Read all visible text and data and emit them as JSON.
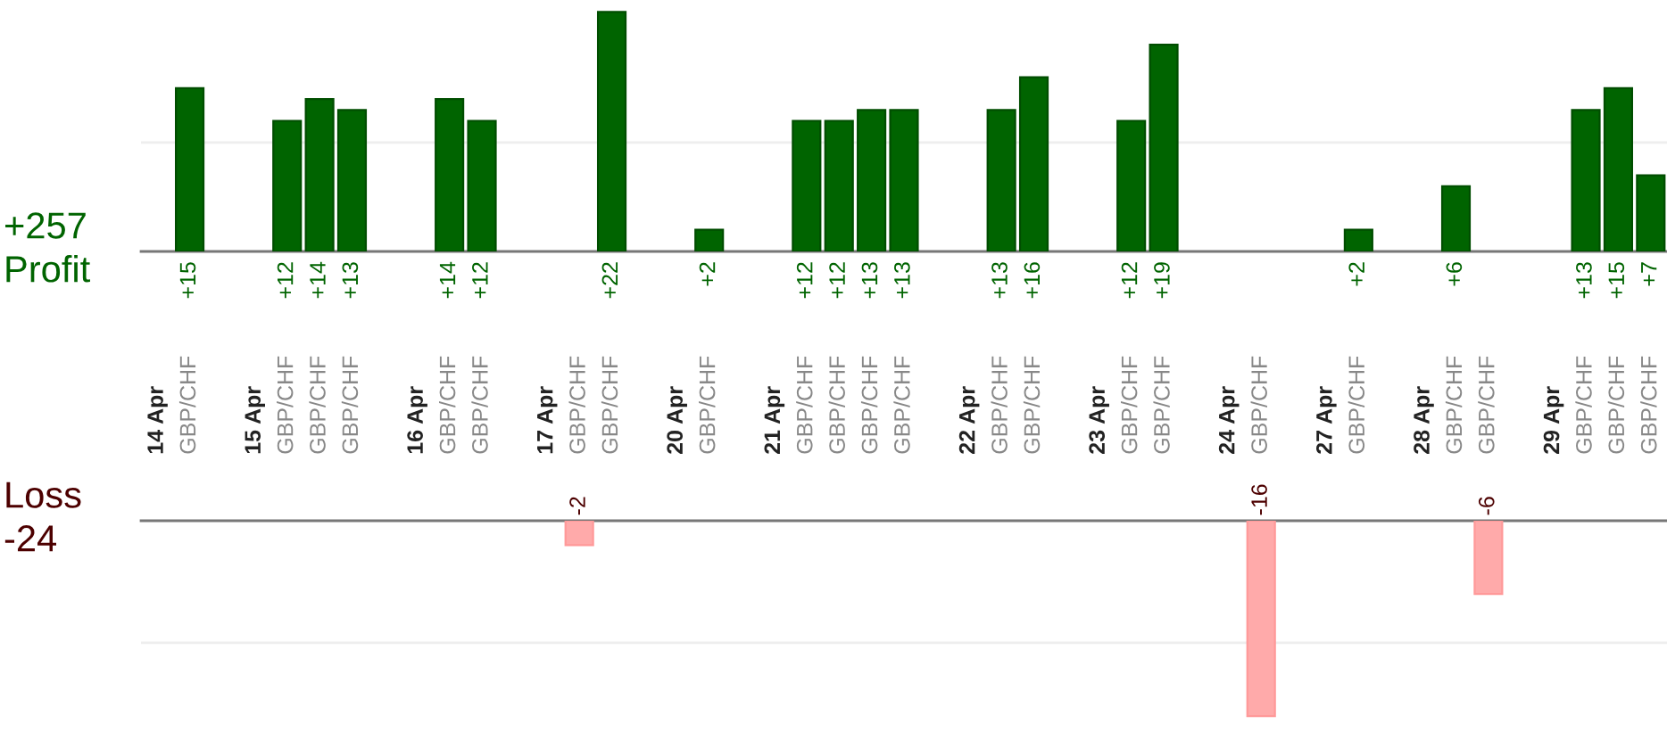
{
  "chart_data": [
    {
      "type": "bar",
      "categories": [
        "14 Apr",
        "GBP/CHF",
        null,
        "15 Apr",
        "GBP/CHF",
        "GBP/CHF",
        "GBP/CHF",
        null,
        "16 Apr",
        "GBP/CHF",
        "GBP/CHF",
        null,
        "17 Apr",
        "GBP/CHF",
        "GBP/CHF",
        null,
        "20 Apr",
        "GBP/CHF",
        null,
        "21 Apr",
        "GBP/CHF",
        "GBP/CHF",
        "GBP/CHF",
        "GBP/CHF",
        null,
        "22 Apr",
        "GBP/CHF",
        "GBP/CHF",
        null,
        "23 Apr",
        "GBP/CHF",
        "GBP/CHF",
        null,
        "24 Apr",
        "GBP/CHF",
        null,
        "27 Apr",
        "GBP/CHF",
        null,
        "28 Apr",
        "GBP/CHF",
        "GBP/CHF",
        null,
        "29 Apr",
        "GBP/CHF",
        "GBP/CHF",
        "GBP/CHF"
      ],
      "values": [
        null,
        15,
        null,
        null,
        12,
        14,
        13,
        null,
        null,
        14,
        12,
        null,
        null,
        null,
        22,
        null,
        null,
        2,
        null,
        null,
        12,
        12,
        13,
        13,
        null,
        null,
        13,
        16,
        null,
        null,
        12,
        19,
        null,
        null,
        null,
        null,
        null,
        2,
        null,
        null,
        6,
        null,
        null,
        null,
        13,
        15,
        7
      ],
      "value_labels": [
        null,
        "+15",
        null,
        null,
        "+12",
        "+14",
        "+13",
        null,
        null,
        "+14",
        "+12",
        null,
        null,
        null,
        "+22",
        null,
        null,
        "+2",
        null,
        null,
        "+12",
        "+12",
        "+13",
        "+13",
        null,
        null,
        "+13",
        "+16",
        null,
        null,
        "+12",
        "+19",
        null,
        null,
        null,
        null,
        null,
        "+2",
        null,
        null,
        "+6",
        null,
        null,
        null,
        "+13",
        "+15",
        "+7"
      ],
      "color": "#006400",
      "ref_lines": [
        {
          "axis": "y",
          "value": 10,
          "color": "#eeeeee"
        }
      ],
      "tick_labels": "x",
      "annotations": [
        "+257",
        "Profit"
      ]
    },
    {
      "type": "bar",
      "categories": [
        null,
        null,
        null,
        null,
        null,
        null,
        null,
        null,
        null,
        null,
        null,
        null,
        null,
        null,
        null,
        null,
        null,
        null,
        null,
        null,
        null,
        null,
        null,
        null,
        null,
        null,
        null,
        null,
        null,
        null,
        null,
        null,
        null,
        null,
        null,
        null,
        null,
        null,
        null,
        null,
        null,
        null,
        null,
        null,
        null,
        null,
        null
      ],
      "values": [
        null,
        null,
        null,
        null,
        null,
        null,
        null,
        null,
        null,
        null,
        null,
        null,
        null,
        -2,
        null,
        null,
        null,
        null,
        null,
        null,
        null,
        null,
        null,
        null,
        null,
        null,
        null,
        null,
        null,
        null,
        null,
        null,
        null,
        null,
        -16,
        null,
        null,
        null,
        null,
        null,
        null,
        -6,
        null,
        null,
        null,
        null,
        null
      ],
      "value_labels": [
        null,
        null,
        null,
        null,
        null,
        null,
        null,
        null,
        null,
        null,
        null,
        null,
        null,
        "-2",
        null,
        null,
        null,
        null,
        null,
        null,
        null,
        null,
        null,
        null,
        null,
        null,
        null,
        null,
        null,
        null,
        null,
        null,
        null,
        null,
        "-16",
        null,
        null,
        null,
        null,
        null,
        null,
        "-6",
        null,
        null,
        null,
        null,
        null
      ],
      "color": "#ffaaaa",
      "ref_lines": [
        {
          "axis": "y",
          "value": -10,
          "color": "#eeeeee"
        }
      ],
      "tick_labels": false,
      "annotations": [
        "Loss",
        "-24"
      ]
    }
  ]
}
